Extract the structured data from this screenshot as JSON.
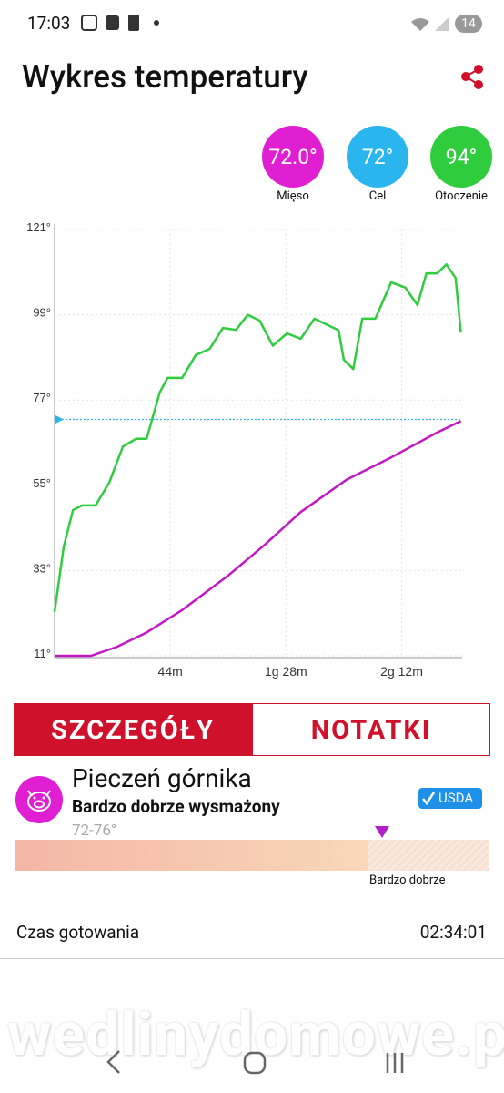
{
  "status_bar": {
    "time": "17:03",
    "battery": "14"
  },
  "header": {
    "title": "Wykres temperatury"
  },
  "probes": [
    {
      "value": "72.0°",
      "label": "Mięso",
      "color": "#e01fd3"
    },
    {
      "value": "72°",
      "label": "Cel",
      "color": "#2bb5ee"
    },
    {
      "value": "94°",
      "label": "Otoczenie",
      "color": "#2fcd3d"
    }
  ],
  "chart_data": {
    "type": "line",
    "xlim": [
      0,
      155
    ],
    "xticks": [
      {
        "value": 44,
        "label": "44m"
      },
      {
        "value": 88,
        "label": "1g 28m"
      },
      {
        "value": 132,
        "label": "2g 12m"
      }
    ],
    "ylim": [
      11,
      121
    ],
    "yticks": [
      {
        "value": 11,
        "label": "11°"
      },
      {
        "value": 33,
        "label": "33°"
      },
      {
        "value": 55,
        "label": "55°"
      },
      {
        "value": 77,
        "label": "77°"
      },
      {
        "value": 99,
        "label": "99°"
      },
      {
        "value": 121,
        "label": "121°"
      }
    ],
    "grid": true,
    "target": 72,
    "target_color": "#2bb5ee",
    "series": [
      {
        "name": "Otoczenie",
        "color": "#2fcd3d",
        "x": [
          0,
          3.5,
          7,
          10.4,
          15.6,
          20.8,
          26,
          31,
          35,
          40,
          43,
          48.5,
          53.7,
          59,
          64,
          69,
          73.5,
          78,
          83,
          88.4,
          93.6,
          98.8,
          108,
          110,
          113.6,
          117,
          122,
          128,
          133.4,
          138,
          141.4,
          145.5,
          149,
          152.5,
          154.5
        ],
        "values": [
          22.3,
          39.2,
          48.6,
          49.8,
          49.8,
          55.7,
          65,
          67,
          67,
          79,
          82.7,
          82.7,
          88.6,
          90.2,
          95.6,
          95.1,
          99,
          97.5,
          91,
          94.2,
          92.8,
          98,
          95,
          87.4,
          85,
          98,
          98,
          107.4,
          106,
          101.5,
          109.7,
          109.7,
          112,
          108.5,
          94.4
        ]
      },
      {
        "name": "Mięso",
        "color": "#c318c6",
        "x": [
          0,
          13.9,
          24,
          34.7,
          48.5,
          66,
          80,
          93.6,
          111,
          128,
          145.5,
          154.5
        ],
        "values": [
          11,
          11,
          13.4,
          16.9,
          22.8,
          31.7,
          39.7,
          48.1,
          56.4,
          62.2,
          68.6,
          71.6
        ]
      }
    ]
  },
  "tabs": [
    "SZCZEGÓŁY",
    "NOTATKI"
  ],
  "recipe": {
    "name": "Pieczeń górnika",
    "doneness": "Bardzo dobrze wysmażony",
    "badge": "USDA",
    "range": "72-76°",
    "range_label": "Bardzo dobrze"
  },
  "cook_time": {
    "label": "Czas gotowania",
    "value": "02:34:01"
  },
  "watermark": "wedlinydomowe.pl"
}
